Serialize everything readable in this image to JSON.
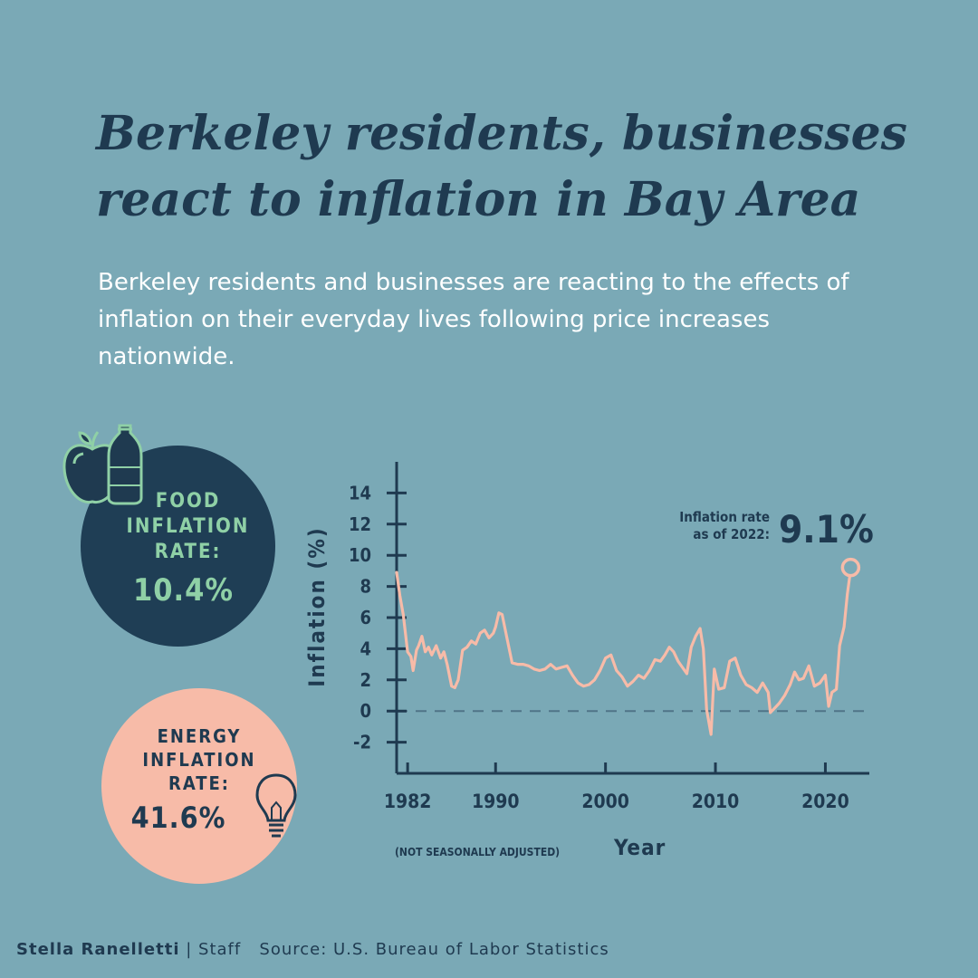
{
  "headline": "Berkeley residents, businesses react to inflation in Bay Area",
  "subhead": "Berkeley residents and businesses are reacting to the effects of inflation on their everyday lives following price increases nationwide.",
  "food": {
    "label_lines": [
      "FOOD",
      "INFLATION",
      "RATE:"
    ],
    "value": "10.4%",
    "icons": [
      "apple-icon",
      "bottle-icon"
    ]
  },
  "energy": {
    "label_lines": [
      "ENERGY",
      "INFLATION",
      "RATE:"
    ],
    "value": "41.6%",
    "icon": "lightbulb-icon"
  },
  "footer": {
    "author": "Stella Ranelletti",
    "role": "| Staff",
    "source": "Source: U.S. Bureau of Labor Statistics"
  },
  "colors": {
    "background": "#7aa9b6",
    "navy": "#1f3a50",
    "line": "#f7bba8",
    "food_circle": "#1f3e55",
    "food_text": "#8fd0a6",
    "energy_circle": "#f7bba8"
  },
  "chart_data": {
    "type": "line",
    "ylabel": "Inflation (%)",
    "xlabel": "Year",
    "note": "(NOT SEASONALLY ADJUSTED)",
    "annotation": {
      "label_lines": [
        "Inflation rate",
        "as of 2022:"
      ],
      "value": "9.1%"
    },
    "xlim": [
      1981,
      2024
    ],
    "ylim": [
      -4,
      16
    ],
    "x_ticks": [
      1982,
      1990,
      2000,
      2010,
      2020
    ],
    "y_ticks": [
      -2,
      0,
      2,
      4,
      6,
      8,
      10,
      12,
      14
    ],
    "zero_line": "dashed",
    "series": [
      {
        "x": [
          1981.0,
          1981.3,
          1981.6,
          1982.0,
          1982.3,
          1982.5,
          1982.8,
          1983.0,
          1983.3,
          1983.6,
          1983.9,
          1984.2,
          1984.6,
          1985.0,
          1985.3,
          1985.6,
          1986.0,
          1986.3,
          1986.6,
          1987.0,
          1987.4,
          1987.8,
          1988.2,
          1988.6,
          1989.0,
          1989.4,
          1989.8,
          1990.0,
          1990.3,
          1990.6,
          1991.0,
          1991.5,
          1992.0,
          1992.5,
          1993.0,
          1993.5,
          1994.0,
          1994.5,
          1995.0,
          1995.5,
          1996.0,
          1996.5,
          1997.0,
          1997.5,
          1998.0,
          1998.5,
          1999.0,
          1999.5,
          2000.0,
          2000.5,
          2001.0,
          2001.5,
          2002.0,
          2002.5,
          2003.0,
          2003.5,
          2004.0,
          2004.5,
          2005.0,
          2005.4,
          2005.8,
          2006.2,
          2006.6,
          2007.0,
          2007.4,
          2007.8,
          2008.2,
          2008.6,
          2008.9,
          2009.2,
          2009.6,
          2009.9,
          2010.3,
          2010.8,
          2011.3,
          2011.8,
          2012.3,
          2012.8,
          2013.3,
          2013.8,
          2014.3,
          2014.8,
          2015.0,
          2015.4,
          2015.8,
          2016.3,
          2016.8,
          2017.2,
          2017.6,
          2018.0,
          2018.5,
          2019.0,
          2019.5,
          2020.0,
          2020.3,
          2020.6,
          2021.0,
          2021.3,
          2021.7,
          2022.0,
          2022.3
        ],
        "y": [
          8.9,
          7.4,
          6.2,
          3.8,
          3.5,
          2.6,
          3.9,
          4.2,
          4.8,
          3.8,
          4.1,
          3.6,
          4.2,
          3.4,
          3.8,
          3.0,
          1.6,
          1.5,
          2.0,
          3.9,
          4.1,
          4.5,
          4.3,
          5.0,
          5.2,
          4.7,
          5.0,
          5.4,
          6.3,
          6.2,
          4.8,
          3.1,
          3.0,
          3.0,
          2.9,
          2.7,
          2.6,
          2.7,
          3.0,
          2.7,
          2.8,
          2.9,
          2.3,
          1.8,
          1.6,
          1.7,
          2.0,
          2.6,
          3.4,
          3.6,
          2.6,
          2.2,
          1.6,
          1.9,
          2.3,
          2.1,
          2.6,
          3.3,
          3.2,
          3.6,
          4.1,
          3.8,
          3.2,
          2.8,
          2.4,
          4.1,
          4.8,
          5.3,
          4.0,
          0.1,
          -1.5,
          2.7,
          1.4,
          1.5,
          3.2,
          3.4,
          2.3,
          1.7,
          1.5,
          1.2,
          1.8,
          1.2,
          -0.1,
          0.2,
          0.5,
          1.0,
          1.7,
          2.5,
          2.0,
          2.1,
          2.9,
          1.6,
          1.8,
          2.3,
          0.3,
          1.2,
          1.4,
          4.2,
          5.4,
          7.5,
          9.1
        ]
      }
    ]
  }
}
